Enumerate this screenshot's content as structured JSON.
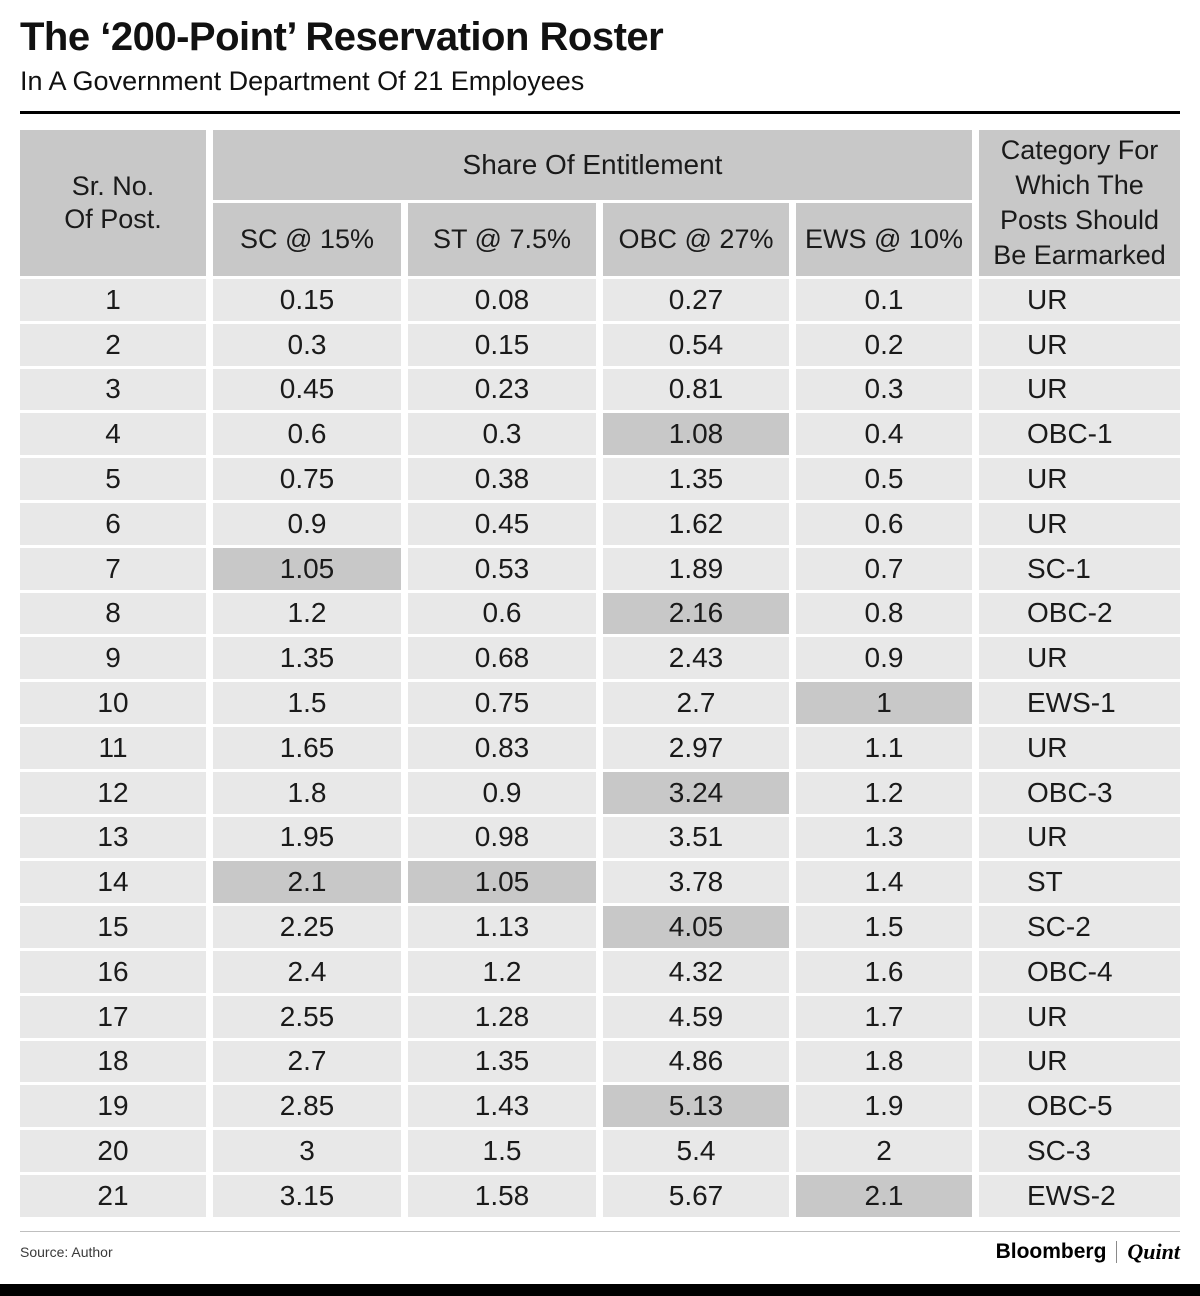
{
  "title": "The ‘200-Point’ Reservation Roster",
  "subtitle": "In A Government Department Of 21 Employees",
  "table_header": {
    "corner": "Sr. No.\nOf Post.",
    "group": "Share Of Entitlement",
    "sub": [
      "SC @ 15%",
      "ST @ 7.5%",
      "OBC @ 27%",
      "EWS @ 10%"
    ],
    "category": "Category For\nWhich The\nPosts Should\nBe Earmarked"
  },
  "chart_data": {
    "type": "table",
    "title": "The ‘200-Point’ Reservation Roster",
    "subtitle": "In A Government Department Of 21 Employees",
    "columns": [
      "Sr. No. Of Post.",
      "SC @ 15%",
      "ST @ 7.5%",
      "OBC @ 27%",
      "EWS @ 10%",
      "Category For Which The Posts Should Be Earmarked"
    ],
    "rows": [
      {
        "sr": "1",
        "sc": "0.15",
        "st": "0.08",
        "obc": "0.27",
        "ews": "0.1",
        "category": "UR",
        "highlighted": []
      },
      {
        "sr": "2",
        "sc": "0.3",
        "st": "0.15",
        "obc": "0.54",
        "ews": "0.2",
        "category": "UR",
        "highlighted": []
      },
      {
        "sr": "3",
        "sc": "0.45",
        "st": "0.23",
        "obc": "0.81",
        "ews": "0.3",
        "category": "UR",
        "highlighted": []
      },
      {
        "sr": "4",
        "sc": "0.6",
        "st": "0.3",
        "obc": "1.08",
        "ews": "0.4",
        "category": "OBC-1",
        "highlighted": [
          "obc"
        ]
      },
      {
        "sr": "5",
        "sc": "0.75",
        "st": "0.38",
        "obc": "1.35",
        "ews": "0.5",
        "category": "UR",
        "highlighted": []
      },
      {
        "sr": "6",
        "sc": "0.9",
        "st": "0.45",
        "obc": "1.62",
        "ews": "0.6",
        "category": "UR",
        "highlighted": []
      },
      {
        "sr": "7",
        "sc": "1.05",
        "st": "0.53",
        "obc": "1.89",
        "ews": "0.7",
        "category": "SC-1",
        "highlighted": [
          "sc"
        ]
      },
      {
        "sr": "8",
        "sc": "1.2",
        "st": "0.6",
        "obc": "2.16",
        "ews": "0.8",
        "category": "OBC-2",
        "highlighted": [
          "obc"
        ]
      },
      {
        "sr": "9",
        "sc": "1.35",
        "st": "0.68",
        "obc": "2.43",
        "ews": "0.9",
        "category": "UR",
        "highlighted": []
      },
      {
        "sr": "10",
        "sc": "1.5",
        "st": "0.75",
        "obc": "2.7",
        "ews": "1",
        "category": "EWS-1",
        "highlighted": [
          "ews"
        ]
      },
      {
        "sr": "11",
        "sc": "1.65",
        "st": "0.83",
        "obc": "2.97",
        "ews": "1.1",
        "category": "UR",
        "highlighted": []
      },
      {
        "sr": "12",
        "sc": "1.8",
        "st": "0.9",
        "obc": "3.24",
        "ews": "1.2",
        "category": "OBC-3",
        "highlighted": [
          "obc"
        ]
      },
      {
        "sr": "13",
        "sc": "1.95",
        "st": "0.98",
        "obc": "3.51",
        "ews": "1.3",
        "category": "UR",
        "highlighted": []
      },
      {
        "sr": "14",
        "sc": "2.1",
        "st": "1.05",
        "obc": "3.78",
        "ews": "1.4",
        "category": "ST",
        "highlighted": [
          "sc",
          "st"
        ]
      },
      {
        "sr": "15",
        "sc": "2.25",
        "st": "1.13",
        "obc": "4.05",
        "ews": "1.5",
        "category": "SC-2",
        "highlighted": [
          "obc"
        ]
      },
      {
        "sr": "16",
        "sc": "2.4",
        "st": "1.2",
        "obc": "4.32",
        "ews": "1.6",
        "category": "OBC-4",
        "highlighted": []
      },
      {
        "sr": "17",
        "sc": "2.55",
        "st": "1.28",
        "obc": "4.59",
        "ews": "1.7",
        "category": "UR",
        "highlighted": []
      },
      {
        "sr": "18",
        "sc": "2.7",
        "st": "1.35",
        "obc": "4.86",
        "ews": "1.8",
        "category": "UR",
        "highlighted": []
      },
      {
        "sr": "19",
        "sc": "2.85",
        "st": "1.43",
        "obc": "5.13",
        "ews": "1.9",
        "category": "OBC-5",
        "highlighted": [
          "obc"
        ]
      },
      {
        "sr": "20",
        "sc": "3",
        "st": "1.5",
        "obc": "5.4",
        "ews": "2",
        "category": "SC-3",
        "highlighted": []
      },
      {
        "sr": "21",
        "sc": "3.15",
        "st": "1.58",
        "obc": "5.67",
        "ews": "2.1",
        "category": "EWS-2",
        "highlighted": [
          "ews"
        ]
      }
    ]
  },
  "footer": {
    "source": "Source: Author",
    "brand_bloomberg": "Bloomberg",
    "brand_quint": "Quint"
  },
  "colors": {
    "header_bg": "#c8c8c8",
    "row_bg": "#e8e8e8",
    "highlight_bg": "#c8c8c8",
    "rule": "#000000",
    "text": "#1a1a1a"
  }
}
